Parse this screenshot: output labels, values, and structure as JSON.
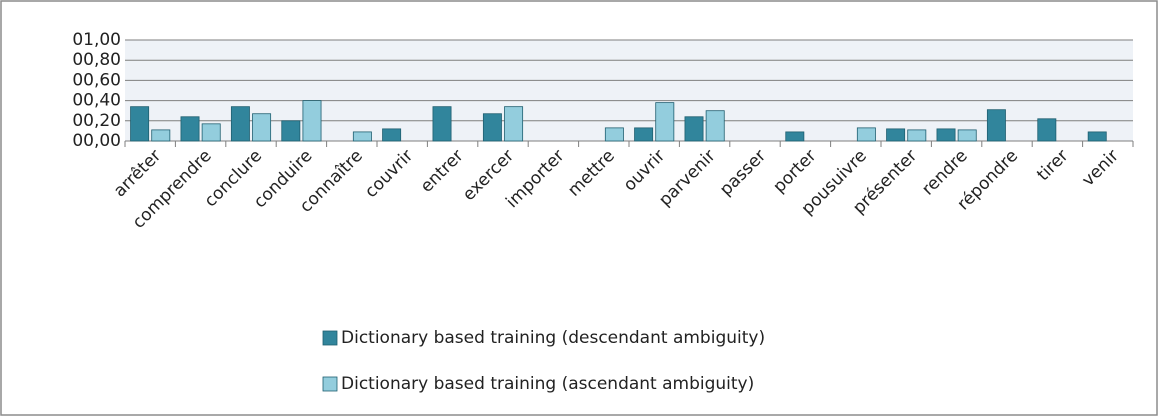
{
  "chart_data": {
    "type": "bar",
    "categories": [
      "arrêter",
      "comprendre",
      "conclure",
      "conduire",
      "connaître",
      "couvrir",
      "entrer",
      "exercer",
      "importer",
      "mettre",
      "ouvrir",
      "parvenir",
      "passer",
      "porter",
      "pousuivre",
      "présenter",
      "rendre",
      "répondre",
      "tirer",
      "venir"
    ],
    "series": [
      {
        "name": "Dictionary based training (descendant ambiguity)",
        "color": "#31859c",
        "values": [
          0.34,
          0.24,
          0.34,
          0.2,
          0,
          0.12,
          0.34,
          0.27,
          0,
          0,
          0.13,
          0.24,
          0,
          0.09,
          0,
          0.12,
          0.12,
          0.31,
          0.22,
          0.09
        ]
      },
      {
        "name": "Dictionary based training (ascendant ambiguity)",
        "color": "#93cddd",
        "values": [
          0.11,
          0.17,
          0.27,
          0.4,
          0.09,
          0,
          0,
          0.34,
          0,
          0.13,
          0.38,
          0.3,
          0,
          0,
          0.13,
          0.11,
          0.11,
          0,
          0,
          0
        ]
      }
    ],
    "ylim": [
      0,
      1
    ],
    "yticks": [
      {
        "value": 0,
        "label": "00,00"
      },
      {
        "value": 0.2,
        "label": "00,20"
      },
      {
        "value": 0.4,
        "label": "00,40"
      },
      {
        "value": 0.6,
        "label": "00,60"
      },
      {
        "value": 0.8,
        "label": "00,80"
      },
      {
        "value": 1,
        "label": "01,00"
      }
    ],
    "grid": true,
    "legend": "bottom"
  }
}
